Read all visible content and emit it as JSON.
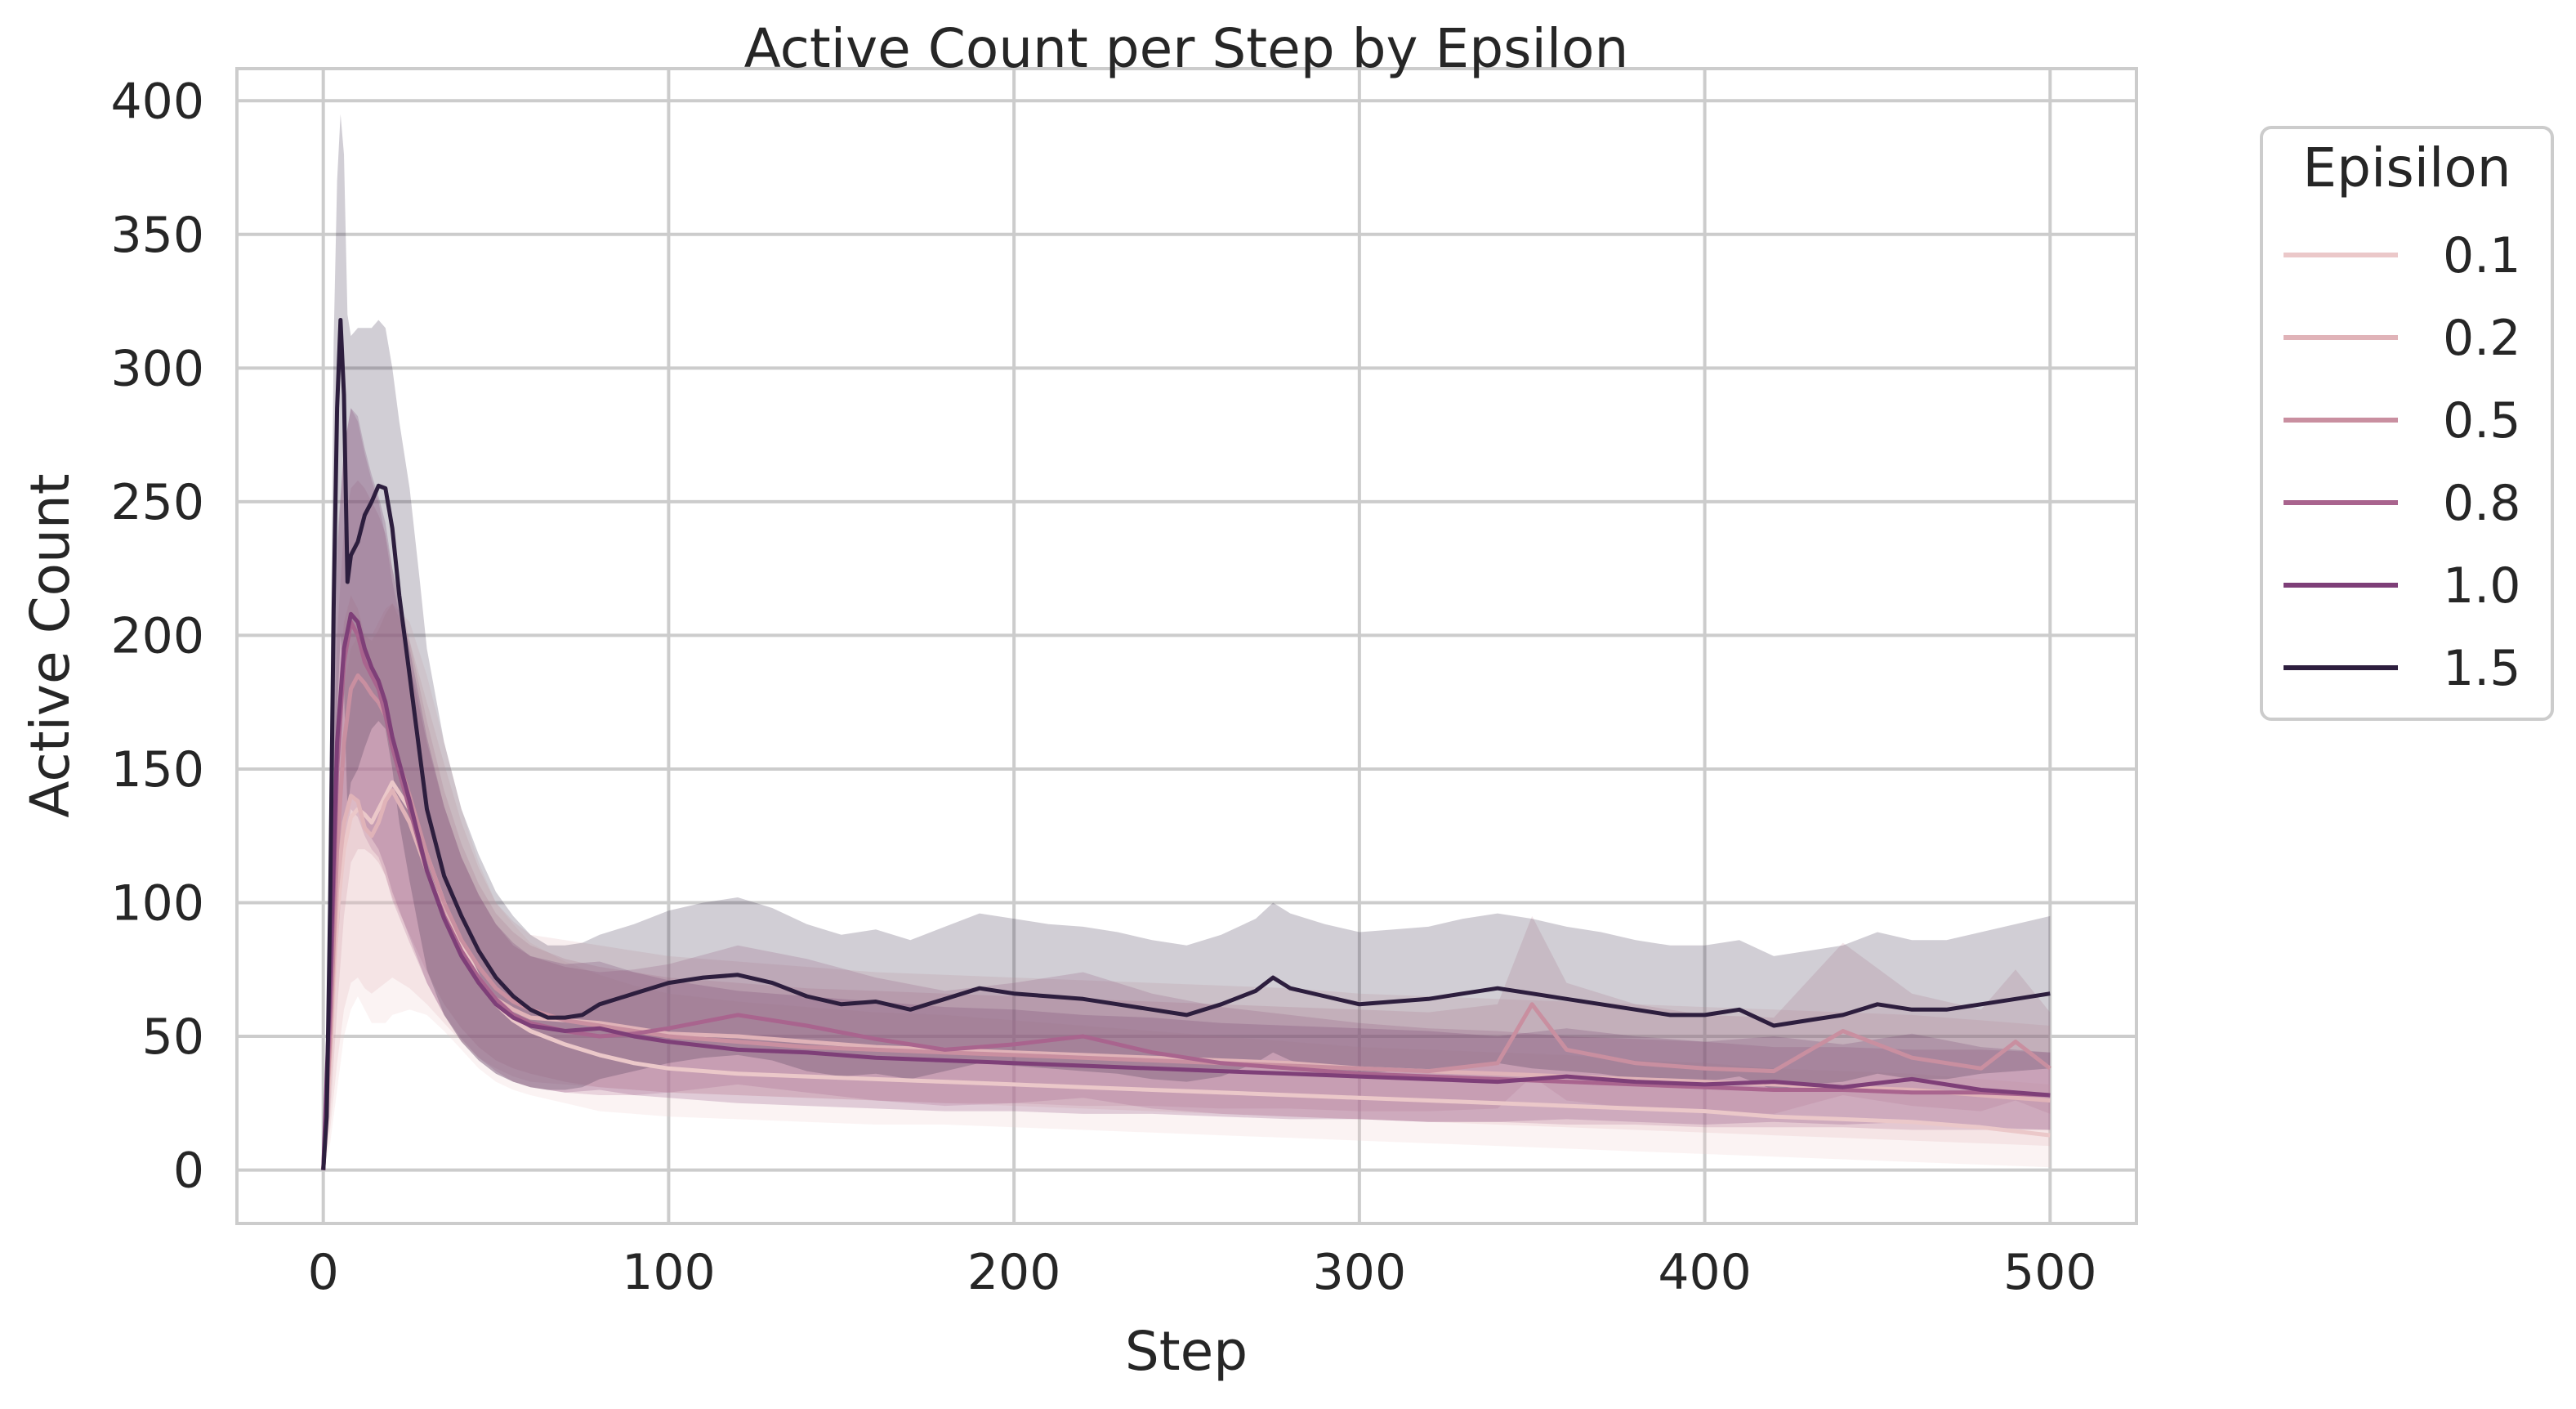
{
  "chart_data": {
    "type": "line",
    "title": "Active Count per Step by Epsilon",
    "xlabel": "Step",
    "ylabel": "Active Count",
    "xlim": [
      -25,
      525
    ],
    "ylim": [
      -20,
      412
    ],
    "xticks": [
      0,
      100,
      200,
      300,
      400,
      500
    ],
    "yticks": [
      0,
      50,
      100,
      150,
      200,
      250,
      300,
      350,
      400
    ],
    "grid": true,
    "legend": {
      "title": "Episilon",
      "placement": "outside-right"
    },
    "series": [
      {
        "name": "0.1",
        "color": "#ebc8c9",
        "x": [
          0,
          2,
          4,
          6,
          8,
          10,
          12,
          14,
          16,
          18,
          20,
          25,
          30,
          35,
          40,
          45,
          50,
          55,
          60,
          70,
          80,
          90,
          100,
          120,
          140,
          160,
          180,
          200,
          220,
          240,
          260,
          280,
          300,
          320,
          340,
          360,
          380,
          400,
          420,
          440,
          460,
          480,
          500
        ],
        "y": [
          0,
          40,
          95,
          120,
          132,
          135,
          133,
          130,
          135,
          140,
          145,
          135,
          118,
          100,
          85,
          72,
          62,
          56,
          52,
          47,
          43,
          40,
          38,
          36,
          35,
          34,
          33,
          32,
          31,
          30,
          29,
          28,
          27,
          26,
          25,
          24,
          23,
          22,
          20,
          19,
          18,
          16,
          13
        ],
        "lower": [
          0,
          10,
          30,
          50,
          60,
          65,
          60,
          55,
          55,
          55,
          58,
          60,
          58,
          52,
          45,
          38,
          33,
          30,
          28,
          25,
          22,
          21,
          20,
          19,
          18,
          17,
          17,
          16,
          15,
          14,
          13,
          12,
          11,
          10,
          9,
          8,
          7,
          6,
          5,
          4,
          3,
          2,
          1
        ],
        "upper": [
          0,
          80,
          150,
          180,
          195,
          200,
          200,
          200,
          205,
          210,
          212,
          205,
          185,
          160,
          135,
          115,
          100,
          92,
          85,
          78,
          73,
          69,
          66,
          63,
          61,
          59,
          58,
          56,
          54,
          52,
          50,
          48,
          46,
          45,
          44,
          43,
          41,
          40,
          38,
          37,
          36,
          34,
          32
        ]
      },
      {
        "name": "0.2",
        "color": "#e0b3b8",
        "x": [
          0,
          2,
          4,
          6,
          8,
          10,
          12,
          14,
          16,
          18,
          20,
          25,
          30,
          35,
          40,
          45,
          50,
          55,
          60,
          70,
          80,
          90,
          100,
          120,
          140,
          160,
          180,
          200,
          220,
          240,
          260,
          280,
          300,
          320,
          340,
          360,
          380,
          400,
          420,
          440,
          460,
          480,
          500
        ],
        "y": [
          0,
          45,
          105,
          130,
          140,
          138,
          128,
          125,
          130,
          138,
          142,
          130,
          112,
          96,
          82,
          72,
          64,
          60,
          57,
          56,
          55,
          53,
          51,
          50,
          48,
          46,
          45,
          44,
          43,
          42,
          41,
          40,
          38,
          37,
          36,
          35,
          34,
          33,
          32,
          31,
          30,
          28,
          26
        ],
        "lower": [
          0,
          15,
          40,
          60,
          70,
          72,
          68,
          66,
          68,
          70,
          72,
          68,
          62,
          55,
          48,
          42,
          38,
          35,
          33,
          32,
          31,
          30,
          29,
          28,
          27,
          26,
          25,
          24,
          23,
          22,
          21,
          20,
          19,
          18,
          17,
          16,
          15,
          14,
          13,
          12,
          11,
          10,
          9
        ],
        "upper": [
          0,
          90,
          170,
          205,
          215,
          210,
          200,
          198,
          202,
          208,
          212,
          198,
          175,
          152,
          130,
          113,
          100,
          93,
          88,
          86,
          84,
          82,
          80,
          78,
          76,
          74,
          73,
          72,
          71,
          70,
          69,
          68,
          66,
          65,
          64,
          63,
          62,
          61,
          60,
          59,
          58,
          56,
          54
        ]
      },
      {
        "name": "0.5",
        "color": "#c98fa0",
        "x": [
          0,
          2,
          4,
          6,
          8,
          10,
          12,
          14,
          16,
          18,
          20,
          25,
          30,
          35,
          40,
          45,
          50,
          55,
          60,
          70,
          80,
          90,
          100,
          120,
          140,
          160,
          180,
          200,
          220,
          240,
          260,
          280,
          300,
          320,
          340,
          350,
          360,
          380,
          400,
          420,
          440,
          460,
          480,
          490,
          500
        ],
        "y": [
          0,
          50,
          120,
          160,
          180,
          185,
          182,
          178,
          175,
          170,
          160,
          140,
          118,
          100,
          86,
          76,
          68,
          63,
          60,
          56,
          54,
          52,
          50,
          48,
          46,
          45,
          44,
          43,
          42,
          41,
          40,
          39,
          38,
          37,
          40,
          62,
          45,
          40,
          38,
          37,
          52,
          42,
          38,
          48,
          38
        ],
        "lower": [
          0,
          20,
          60,
          95,
          115,
          120,
          120,
          118,
          115,
          110,
          102,
          88,
          74,
          62,
          53,
          46,
          41,
          38,
          36,
          33,
          31,
          30,
          29,
          28,
          27,
          26,
          25,
          25,
          24,
          24,
          23,
          23,
          22,
          22,
          23,
          35,
          26,
          23,
          22,
          21,
          28,
          24,
          22,
          26,
          21
        ],
        "upper": [
          0,
          90,
          200,
          240,
          255,
          258,
          255,
          250,
          245,
          238,
          225,
          198,
          168,
          142,
          122,
          107,
          96,
          89,
          84,
          79,
          76,
          74,
          72,
          70,
          68,
          67,
          66,
          65,
          64,
          63,
          62,
          61,
          60,
          59,
          62,
          95,
          70,
          62,
          58,
          57,
          85,
          66,
          60,
          75,
          59
        ]
      },
      {
        "name": "0.8",
        "color": "#a9648e",
        "x": [
          0,
          2,
          4,
          6,
          8,
          10,
          12,
          14,
          16,
          18,
          20,
          25,
          30,
          35,
          40,
          45,
          50,
          55,
          60,
          70,
          80,
          90,
          100,
          120,
          140,
          160,
          180,
          200,
          220,
          240,
          260,
          280,
          300,
          320,
          340,
          360,
          380,
          400,
          420,
          440,
          460,
          480,
          500
        ],
        "y": [
          0,
          60,
          150,
          190,
          205,
          200,
          190,
          185,
          180,
          170,
          158,
          135,
          112,
          95,
          82,
          72,
          64,
          58,
          55,
          52,
          50,
          51,
          53,
          58,
          54,
          49,
          45,
          47,
          50,
          44,
          40,
          38,
          36,
          35,
          34,
          33,
          32,
          31,
          30,
          30,
          29,
          29,
          28
        ],
        "lower": [
          0,
          25,
          80,
          120,
          135,
          132,
          125,
          120,
          117,
          110,
          101,
          85,
          70,
          58,
          49,
          42,
          37,
          33,
          31,
          29,
          28,
          28,
          29,
          32,
          29,
          26,
          24,
          25,
          27,
          23,
          21,
          20,
          19,
          18,
          18,
          17,
          17,
          16,
          16,
          16,
          15,
          15,
          15
        ],
        "upper": [
          0,
          105,
          230,
          270,
          285,
          280,
          268,
          258,
          250,
          237,
          220,
          190,
          160,
          136,
          117,
          103,
          92,
          84,
          80,
          76,
          74,
          75,
          77,
          84,
          79,
          72,
          67,
          70,
          74,
          66,
          61,
          58,
          55,
          53,
          52,
          50,
          49,
          48,
          46,
          46,
          45,
          45,
          44
        ]
      },
      {
        "name": "1.0",
        "color": "#7e3f78",
        "x": [
          0,
          2,
          4,
          6,
          8,
          10,
          12,
          14,
          16,
          18,
          20,
          25,
          30,
          35,
          40,
          45,
          50,
          55,
          60,
          70,
          80,
          90,
          100,
          120,
          140,
          160,
          180,
          200,
          220,
          240,
          260,
          280,
          300,
          320,
          340,
          360,
          380,
          400,
          420,
          440,
          460,
          480,
          500
        ],
        "y": [
          0,
          70,
          160,
          195,
          208,
          205,
          195,
          188,
          183,
          175,
          162,
          138,
          112,
          94,
          80,
          70,
          62,
          57,
          54,
          52,
          53,
          50,
          48,
          45,
          44,
          42,
          41,
          40,
          39,
          38,
          37,
          36,
          35,
          34,
          33,
          35,
          33,
          32,
          33,
          31,
          34,
          30,
          28
        ],
        "lower": [
          0,
          30,
          95,
          130,
          140,
          138,
          130,
          124,
          120,
          113,
          104,
          87,
          70,
          58,
          48,
          41,
          36,
          33,
          31,
          29,
          30,
          28,
          27,
          25,
          24,
          23,
          22,
          22,
          21,
          21,
          20,
          19,
          19,
          18,
          18,
          19,
          18,
          17,
          18,
          17,
          18,
          16,
          15
        ],
        "upper": [
          0,
          115,
          235,
          270,
          285,
          282,
          270,
          260,
          252,
          242,
          225,
          195,
          162,
          136,
          117,
          103,
          92,
          85,
          80,
          77,
          78,
          74,
          71,
          67,
          65,
          63,
          61,
          60,
          58,
          57,
          55,
          54,
          53,
          52,
          50,
          53,
          50,
          48,
          50,
          47,
          51,
          46,
          44
        ]
      },
      {
        "name": "1.5",
        "color": "#2d1e3e",
        "x": [
          0,
          1,
          2,
          3,
          4,
          5,
          6,
          7,
          8,
          10,
          12,
          14,
          16,
          18,
          20,
          22,
          25,
          28,
          30,
          35,
          40,
          45,
          50,
          55,
          60,
          65,
          70,
          75,
          80,
          90,
          100,
          110,
          120,
          130,
          140,
          150,
          160,
          170,
          180,
          190,
          200,
          210,
          220,
          230,
          240,
          250,
          260,
          270,
          275,
          280,
          290,
          300,
          310,
          320,
          330,
          340,
          350,
          360,
          370,
          380,
          390,
          400,
          410,
          420,
          430,
          440,
          450,
          460,
          470,
          480,
          490,
          500
        ],
        "y": [
          0,
          20,
          100,
          210,
          285,
          318,
          290,
          220,
          230,
          235,
          245,
          250,
          256,
          255,
          240,
          215,
          185,
          155,
          135,
          110,
          95,
          82,
          72,
          65,
          60,
          57,
          57,
          58,
          62,
          66,
          70,
          72,
          73,
          70,
          65,
          62,
          63,
          60,
          64,
          68,
          66,
          65,
          64,
          62,
          60,
          58,
          62,
          67,
          72,
          68,
          65,
          62,
          63,
          64,
          66,
          68,
          66,
          64,
          62,
          60,
          58,
          58,
          60,
          54,
          56,
          58,
          62,
          60,
          60,
          62,
          64,
          66
        ],
        "lower": [
          0,
          8,
          45,
          110,
          170,
          200,
          180,
          135,
          145,
          150,
          158,
          165,
          168,
          165,
          150,
          130,
          108,
          88,
          75,
          58,
          48,
          41,
          36,
          33,
          31,
          30,
          30,
          31,
          34,
          37,
          40,
          42,
          43,
          41,
          37,
          35,
          36,
          34,
          37,
          40,
          39,
          38,
          37,
          36,
          34,
          33,
          35,
          40,
          44,
          41,
          38,
          36,
          37,
          37,
          38,
          40,
          38,
          37,
          36,
          34,
          33,
          33,
          35,
          30,
          32,
          33,
          36,
          34,
          34,
          36,
          37,
          38
        ],
        "upper": [
          0,
          40,
          165,
          310,
          370,
          395,
          380,
          320,
          312,
          315,
          315,
          315,
          318,
          315,
          300,
          280,
          255,
          220,
          195,
          160,
          135,
          118,
          104,
          95,
          88,
          84,
          84,
          85,
          88,
          92,
          97,
          100,
          102,
          98,
          92,
          88,
          90,
          86,
          91,
          96,
          94,
          92,
          91,
          89,
          86,
          84,
          88,
          94,
          100,
          96,
          92,
          89,
          90,
          91,
          94,
          96,
          94,
          91,
          89,
          86,
          84,
          84,
          86,
          80,
          82,
          84,
          89,
          86,
          86,
          89,
          92,
          95
        ]
      }
    ]
  }
}
